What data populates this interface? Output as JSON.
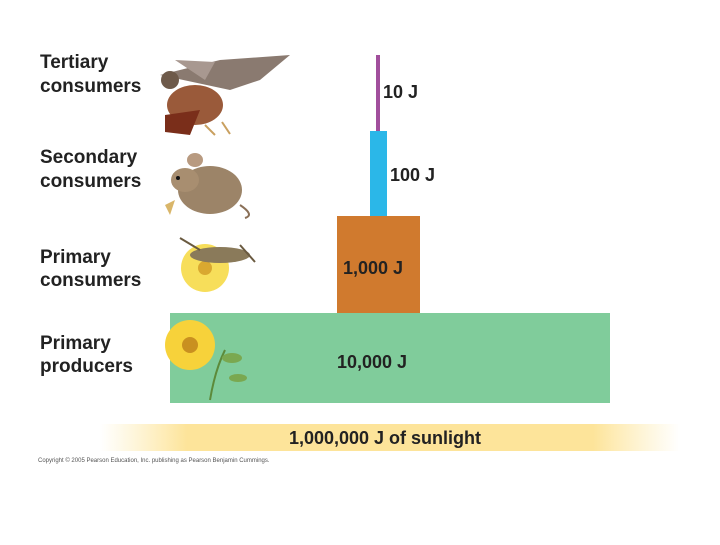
{
  "levels": [
    {
      "label": [
        "Tertiary",
        "consumers"
      ],
      "energy": "10 J"
    },
    {
      "label": [
        "Secondary",
        "consumers"
      ],
      "energy": "100 J"
    },
    {
      "label": [
        "Primary",
        "consumers"
      ],
      "energy": "1,000 J"
    },
    {
      "label": [
        "Primary",
        "producers"
      ],
      "energy": "10,000 J"
    }
  ],
  "sunlight": "1,000,000 J of sunlight",
  "copyright": "Copyright © 2005 Pearson Education, Inc. publishing as Pearson Benjamin Cummings."
}
